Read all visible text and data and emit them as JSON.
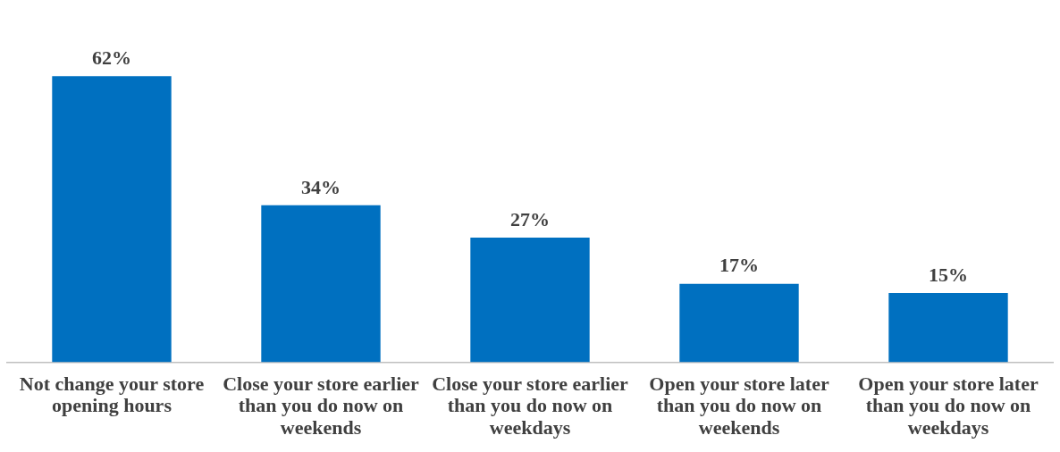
{
  "chart_data": {
    "type": "bar",
    "categories": [
      "Not change your store opening hours",
      "Close your store earlier than you do now on weekends",
      "Close your store earlier than you do now on weekdays",
      "Open your store later than you do now on weekends",
      "Open your store later than you do now on weekdays"
    ],
    "values": [
      62,
      34,
      27,
      17,
      15
    ],
    "value_labels": [
      "62%",
      "34%",
      "27%",
      "17%",
      "15%"
    ],
    "color": "#0070c0",
    "grid": false,
    "legend": false
  }
}
